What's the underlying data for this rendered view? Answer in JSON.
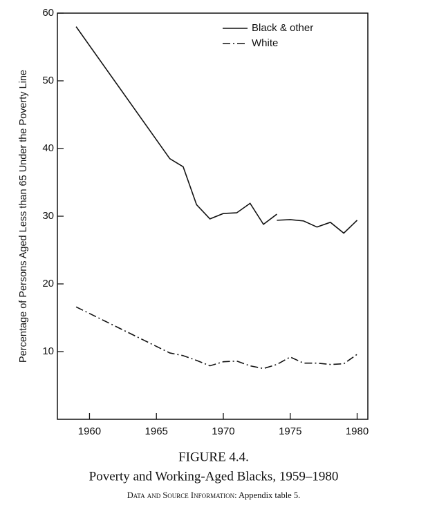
{
  "chart_data": {
    "type": "line",
    "ylabel": "Percentage of Persons Aged Less than 65 Under the Poverty Line",
    "figure_label": "FIGURE 4.4.",
    "title": "Poverty and Working-Aged Blacks, 1959–1980",
    "source_prefix": "Data and Source Information:",
    "source": "Appendix table 5.",
    "xlim": [
      1957.6,
      1980.8
    ],
    "xticks": [
      1960,
      1965,
      1970,
      1975,
      1980
    ],
    "ylim": [
      0,
      60
    ],
    "yticks": [
      10,
      20,
      30,
      40,
      50,
      60
    ],
    "legend": "upper right",
    "series": [
      {
        "name": "Black & other",
        "color": "#111111",
        "dash": "solid",
        "x": [
          1959,
          1966,
          1967,
          1968,
          1969,
          1970,
          1971,
          1972,
          1973,
          1974,
          1974,
          1974,
          1975,
          1976,
          1977,
          1978,
          1979,
          1980
        ],
        "values": [
          58,
          38.5,
          37.3,
          31.7,
          29.6,
          30.4,
          30.5,
          31.9,
          28.8,
          30.3,
          null,
          29.4,
          29.5,
          29.3,
          28.4,
          29.1,
          27.5,
          29.4
        ]
      },
      {
        "name": "White",
        "color": "#111111",
        "dash": "dashdot",
        "x": [
          1959,
          1966,
          1967,
          1968,
          1969,
          1970,
          1971,
          1972,
          1973,
          1974,
          1975,
          1976,
          1977,
          1978,
          1979,
          1980
        ],
        "values": [
          16.6,
          9.8,
          9.4,
          8.7,
          7.9,
          8.5,
          8.6,
          7.9,
          7.5,
          8.1,
          9.2,
          8.3,
          8.3,
          8.1,
          8.2,
          9.6
        ]
      }
    ]
  }
}
